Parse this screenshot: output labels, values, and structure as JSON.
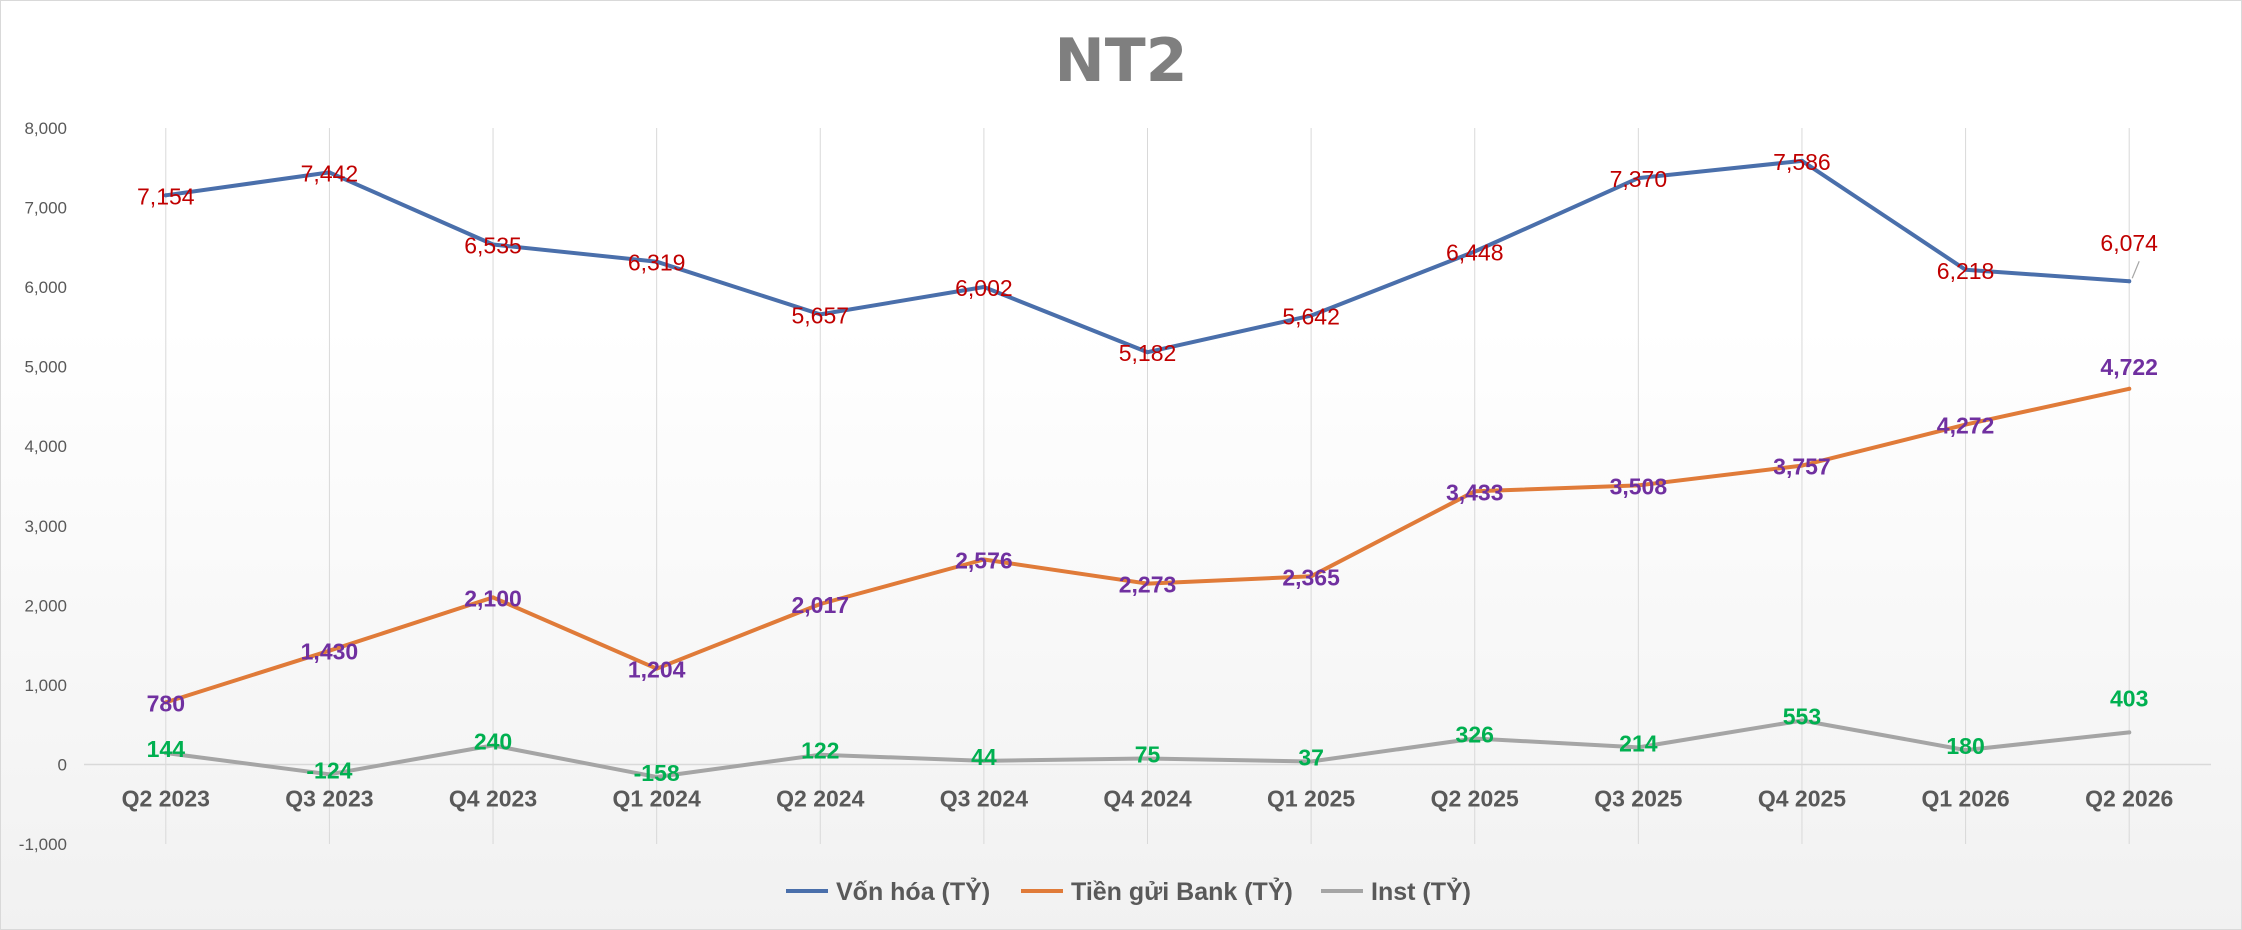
{
  "chart_data": {
    "type": "line",
    "title": "NT2",
    "xlabel": "",
    "ylabel": "",
    "ylim": [
      -1000,
      8000
    ],
    "y_ticks": [
      "-1,000",
      "0",
      "1,000",
      "2,000",
      "3,000",
      "4,000",
      "5,000",
      "6,000",
      "7,000",
      "8,000"
    ],
    "y_tick_values": [
      -1000,
      0,
      1000,
      2000,
      3000,
      4000,
      5000,
      6000,
      7000,
      8000
    ],
    "categories": [
      "Q2 2023",
      "Q3 2023",
      "Q4 2023",
      "Q1 2024",
      "Q2 2024",
      "Q3 2024",
      "Q4 2024",
      "Q1 2025",
      "Q2 2025",
      "Q3 2025",
      "Q4 2025",
      "Q1 2026",
      "Q2 2026"
    ],
    "grid": "vertical",
    "legend_position": "bottom",
    "series": [
      {
        "name": "Vốn hóa (TỶ)",
        "color": "#4a6fab",
        "label_color": "#c00000",
        "values": [
          7154,
          7442,
          6535,
          6319,
          5657,
          6002,
          5182,
          5642,
          6448,
          7370,
          7586,
          6218,
          6074
        ],
        "labels": [
          "7,154",
          "7,442",
          "6,535",
          "6,319",
          "5,657",
          "6,002",
          "5,182",
          "5,642",
          "6,448",
          "7,370",
          "7,586",
          "6,218",
          "6,074"
        ]
      },
      {
        "name": "Tiền gửi Bank (TỶ)",
        "color": "#e07b39",
        "label_color": "#7030a0",
        "values": [
          780,
          1430,
          2100,
          1204,
          2017,
          2576,
          2273,
          2365,
          3433,
          3508,
          3757,
          4272,
          4722
        ],
        "labels": [
          "780",
          "1,430",
          "2,100",
          "1,204",
          "2,017",
          "2,576",
          "2,273",
          "2,365",
          "3,433",
          "3,508",
          "3,757",
          "4,272",
          "4,722"
        ]
      },
      {
        "name": "Inst (TỶ)",
        "color": "#a5a5a5",
        "label_color": "#00b050",
        "values": [
          144,
          -124,
          240,
          -158,
          122,
          44,
          75,
          37,
          326,
          214,
          553,
          180,
          403
        ],
        "labels": [
          "144",
          "-124",
          "240",
          "-158",
          "122",
          "44",
          "75",
          "37",
          "326",
          "214",
          "553",
          "180",
          "403"
        ]
      }
    ]
  }
}
